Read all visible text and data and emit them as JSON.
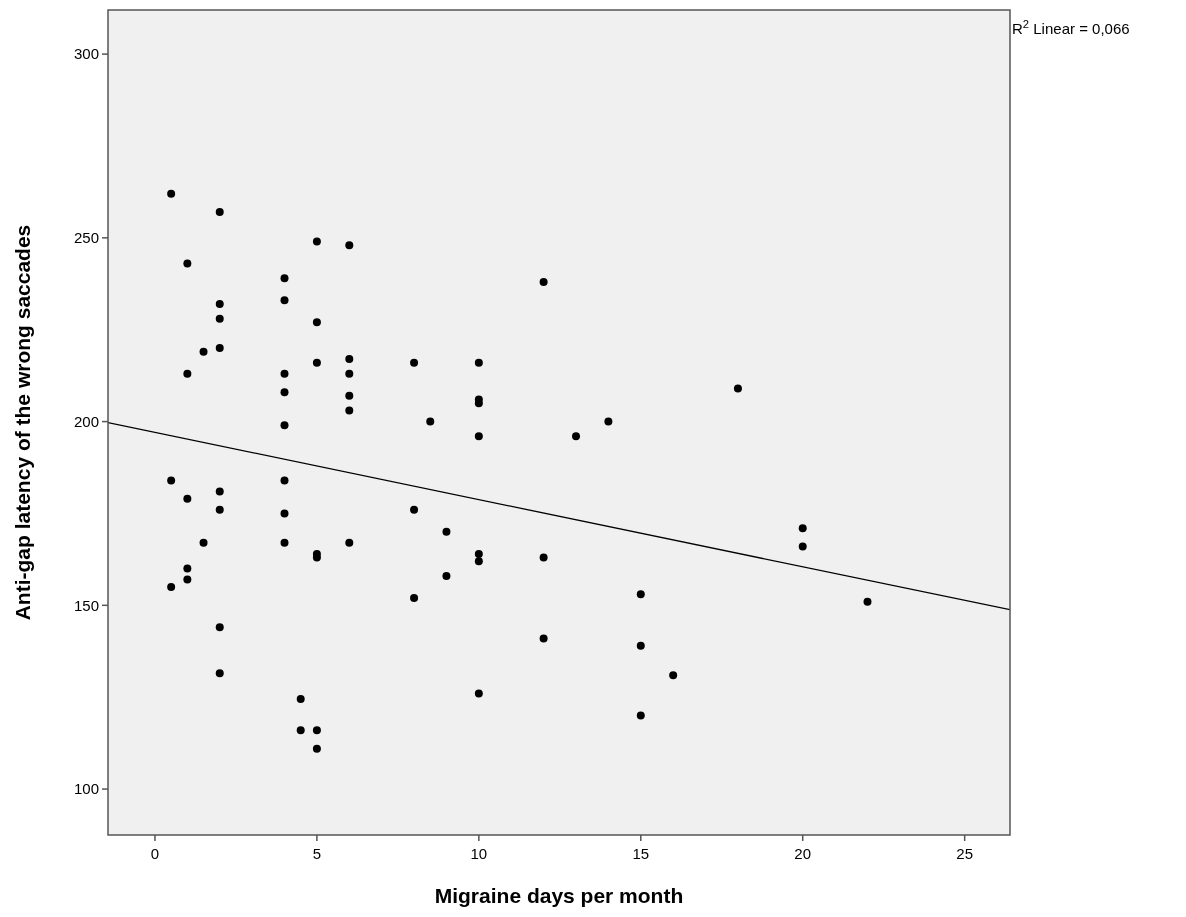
{
  "chart_data": {
    "type": "scatter",
    "xlabel": "Migraine days per month",
    "ylabel": "Anti-gap latency of the wrong saccades",
    "xlim": [
      -1.45,
      26.4
    ],
    "ylim": [
      87.5,
      312
    ],
    "xticks": [
      0,
      5,
      10,
      15,
      20,
      25
    ],
    "yticks": [
      100,
      150,
      200,
      250,
      300
    ],
    "grid": false,
    "marker": "circle",
    "annotations": [
      "R$^{2}$ Linear = 0,066"
    ],
    "series": [
      {
        "color": "#000000",
        "x": [
          0.5,
          2,
          5,
          6,
          1,
          4,
          4,
          2,
          2,
          5,
          1.5,
          2,
          6,
          1,
          4,
          5,
          6,
          4,
          6,
          6,
          4,
          0.5,
          1,
          2,
          2,
          4,
          4,
          4,
          1.5,
          5,
          5,
          6,
          1,
          1,
          0.5,
          2,
          2,
          4.5,
          4.5,
          5,
          5,
          12,
          8,
          10,
          10,
          10,
          8.5,
          10,
          13,
          14,
          8,
          9,
          10,
          10,
          12,
          9,
          8,
          15,
          12,
          15,
          16,
          10,
          15,
          18,
          20,
          20,
          22
        ],
        "values": [
          262,
          257,
          249,
          248,
          243,
          239,
          233,
          232,
          228,
          227,
          219,
          220,
          217,
          213,
          213,
          216,
          213,
          208,
          207,
          203,
          199,
          184,
          179,
          181,
          176,
          184,
          175,
          167,
          167,
          164,
          163,
          167,
          160,
          157,
          155,
          144,
          131.5,
          124.5,
          116,
          116,
          111,
          238,
          216,
          216,
          206,
          205,
          200,
          196,
          196,
          200,
          176,
          170,
          164,
          162,
          163,
          158,
          152,
          153,
          141,
          139,
          131,
          126,
          120,
          209,
          171,
          166,
          151
        ]
      },
      {
        "type": "line",
        "color": "#000000",
        "line_style": "solid",
        "marker": "none",
        "x": [
          -1.45,
          26.4
        ],
        "values": [
          199.7,
          148.8
        ]
      }
    ]
  }
}
